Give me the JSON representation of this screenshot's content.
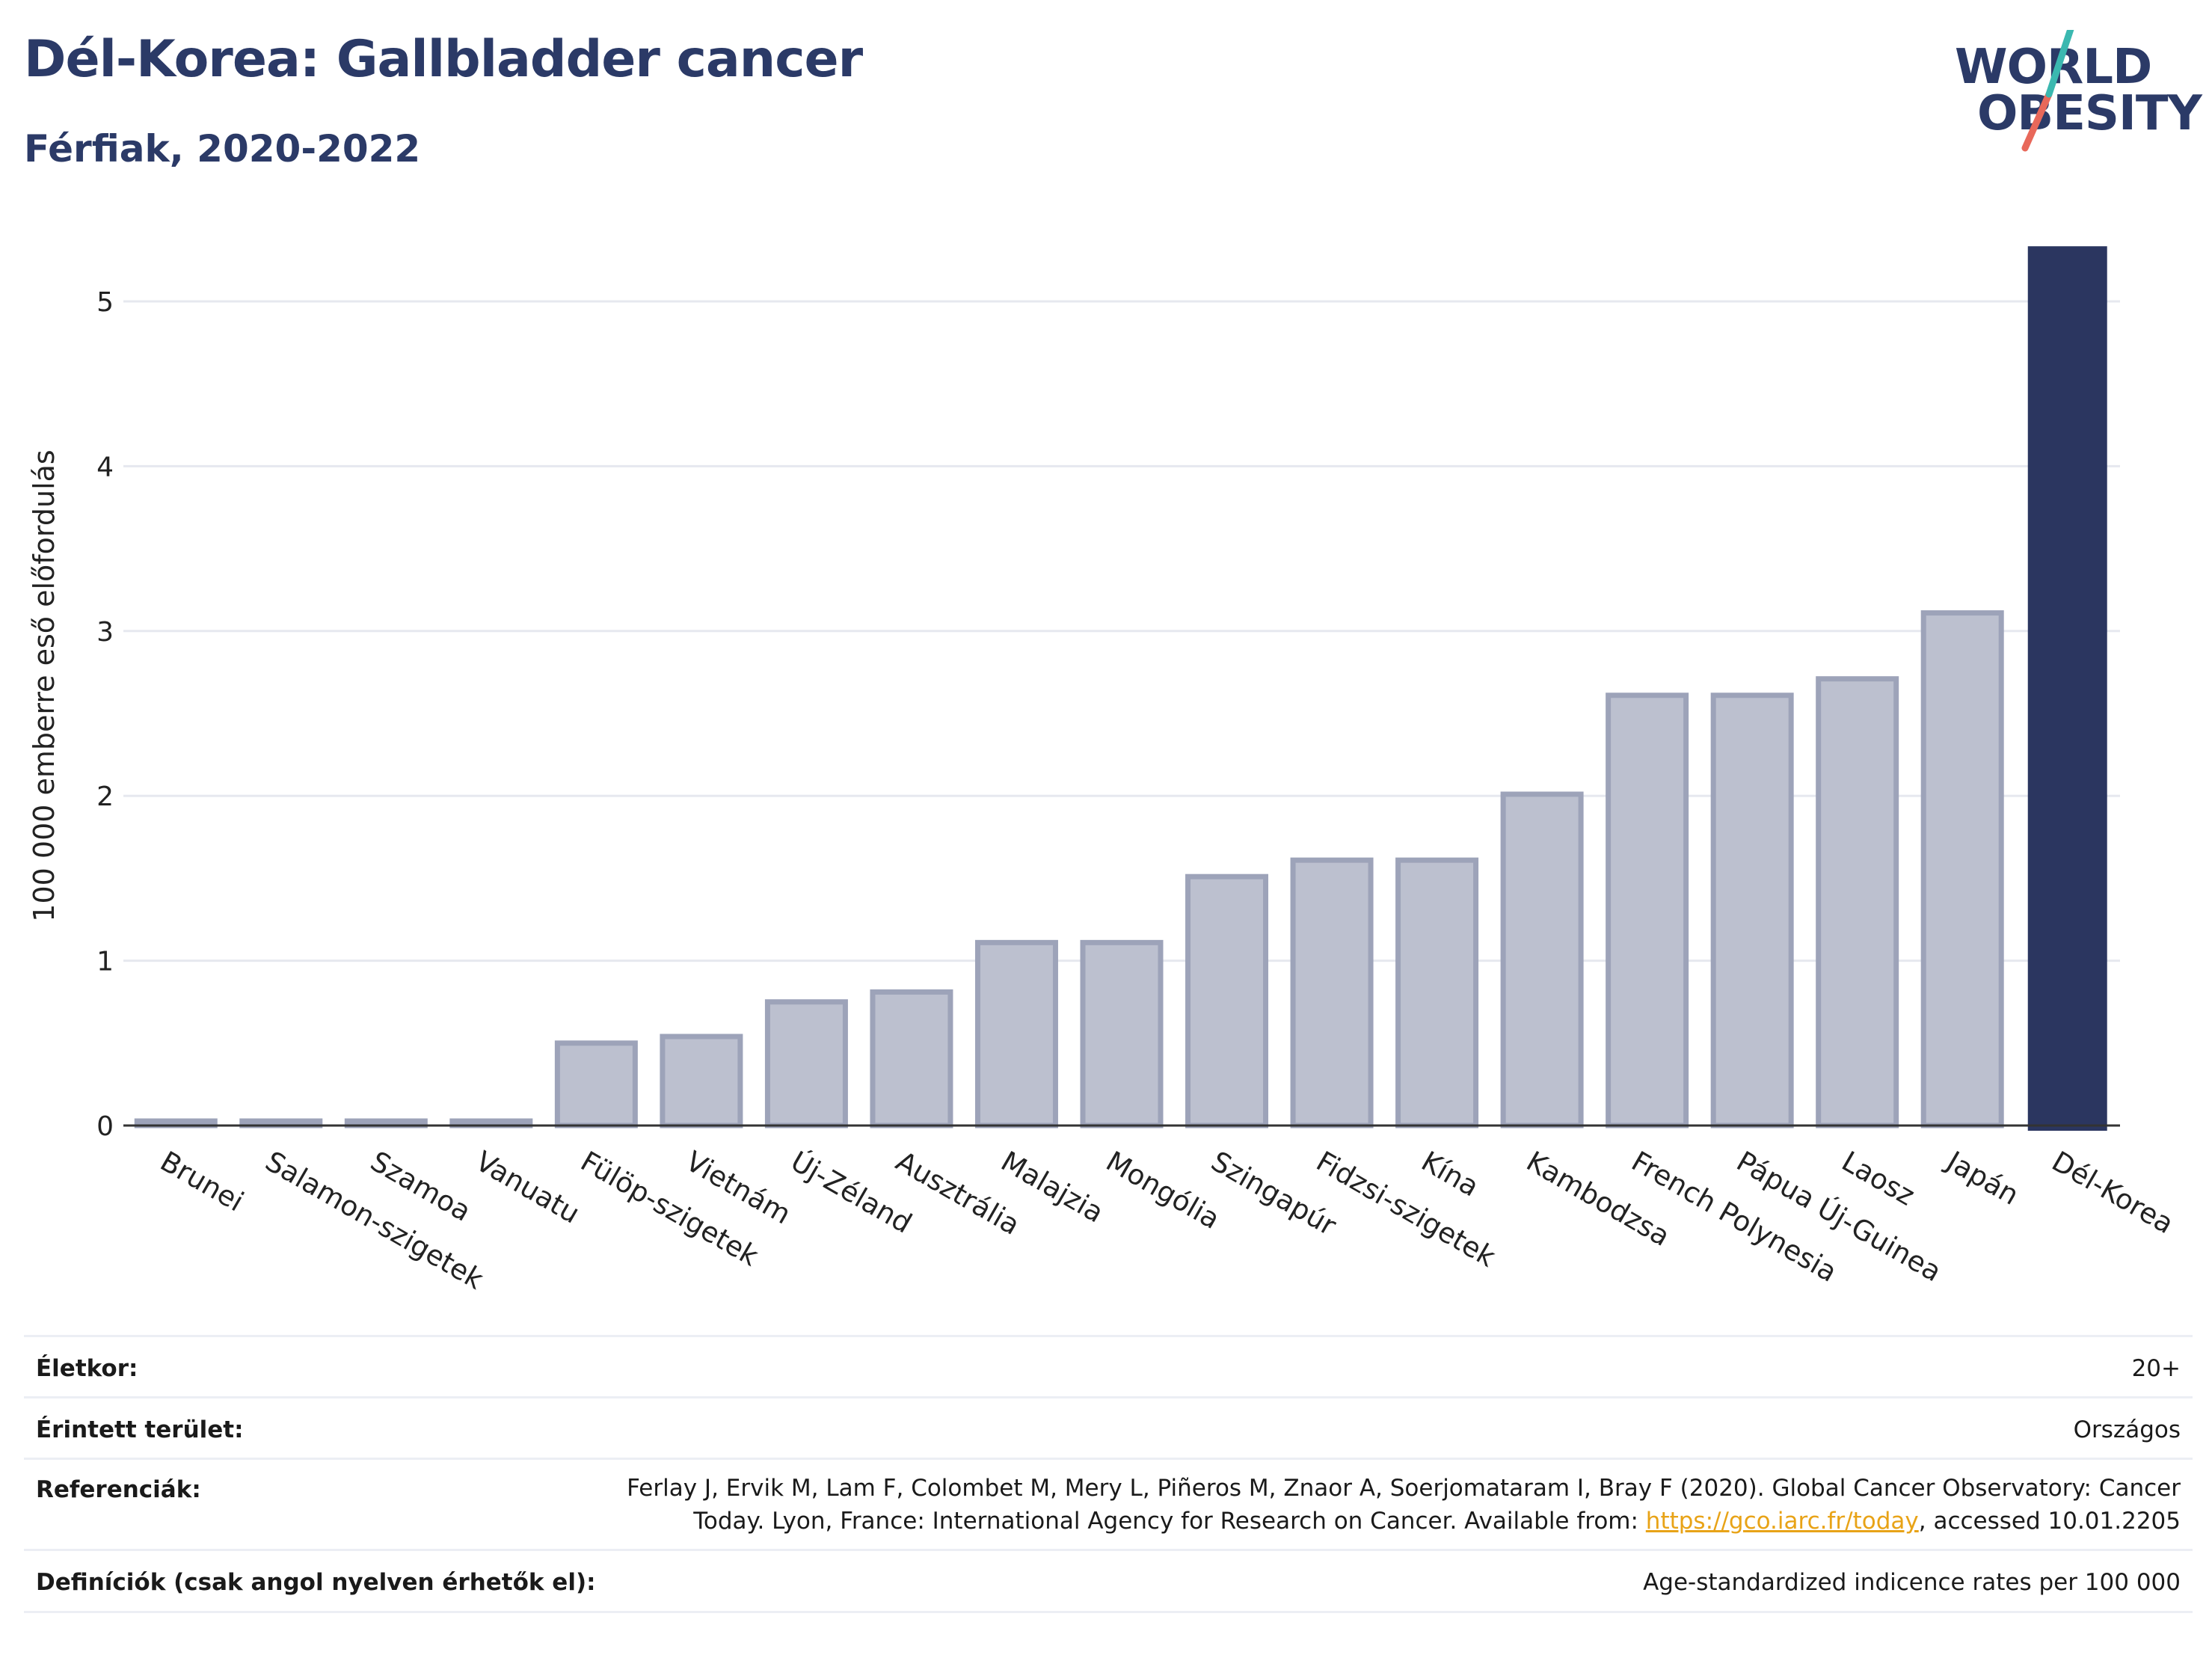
{
  "header": {
    "title": "Dél-Korea: Gallbladder cancer",
    "subtitle": "Férfiak, 2020-2022"
  },
  "logo": {
    "line1": "WORLD",
    "line2": "OBESITY",
    "colors": {
      "text": "#2b3a67",
      "slash_top": "#3bb8b0",
      "slash_bottom": "#e8685a"
    }
  },
  "chart_data": {
    "type": "bar",
    "ylabel": "100 000 emberre eső előfordulás",
    "ylim": [
      0,
      5.4
    ],
    "yticks": [
      0,
      1,
      2,
      3,
      4,
      5
    ],
    "grid": true,
    "categories": [
      "Brunei",
      "Salamon-szigetek",
      "Szamoa",
      "Vanuatu",
      "Fülöp-szigetek",
      "Vietnám",
      "Új-Zéland",
      "Ausztrália",
      "Malajzia",
      "Mongólia",
      "Szingapúr",
      "Fidzsi-szigetek",
      "Kína",
      "Kambodzsa",
      "French Polynesia",
      "Pápua Új-Guinea",
      "Laosz",
      "Japán",
      "Dél-Korea"
    ],
    "values": [
      0,
      0,
      0,
      0,
      0.5,
      0.54,
      0.75,
      0.81,
      1.11,
      1.11,
      1.51,
      1.61,
      1.61,
      2.01,
      2.61,
      2.61,
      2.71,
      3.11,
      5.33
    ],
    "highlight": "Dél-Korea",
    "colors": {
      "bar": "#bcc0cf",
      "bar_edge": "#9da3b9",
      "highlight": "#2b3660"
    }
  },
  "info": {
    "age_label": "Életkor:",
    "age_value": "20+",
    "area_label": "Érintett terület:",
    "area_value": "Országos",
    "ref_label": "Referenciák:",
    "ref_line1": "Ferlay J, Ervik M, Lam F, Colombet M, Mery L, Piñeros M, Znaor A, Soerjomataram I, Bray F (2020). Global Cancer Observatory: Cancer",
    "ref_line2_pre": "Today. Lyon, France: International Agency for Research on Cancer. Available from: ",
    "ref_link": "https://gco.iarc.fr/today",
    "ref_line2_post": ", accessed 10.01.2205",
    "def_label": "Definíciók (csak angol nyelven érhetők el):",
    "def_value": "Age-standardized indicence rates per 100 000"
  }
}
